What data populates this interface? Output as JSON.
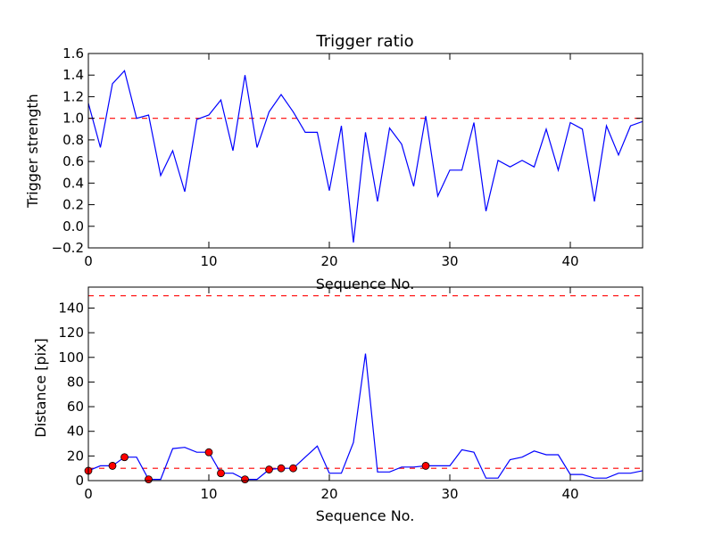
{
  "chart_data": [
    {
      "type": "line",
      "title": "Trigger ratio",
      "xlabel": "Sequence No.",
      "ylabel": "Trigger strength",
      "xlim": [
        0,
        46
      ],
      "ylim": [
        -0.2,
        1.6
      ],
      "xticks": [
        0,
        10,
        20,
        30,
        40
      ],
      "yticks": [
        -0.2,
        0.0,
        0.2,
        0.4,
        0.6,
        0.8,
        1.0,
        1.2,
        1.4,
        1.6
      ],
      "ytick_labels": [
        "−0.2",
        "0.0",
        "0.2",
        "0.4",
        "0.6",
        "0.8",
        "1.0",
        "1.2",
        "1.4",
        "1.6"
      ],
      "xtick_labels": [
        "0",
        "10",
        "20",
        "30",
        "40"
      ],
      "threshold": 1.0,
      "series": [
        {
          "name": "trigger strength",
          "color": "#0000ff",
          "x": [
            0,
            1,
            2,
            3,
            4,
            5,
            6,
            7,
            8,
            9,
            10,
            11,
            12,
            13,
            14,
            15,
            16,
            17,
            18,
            19,
            20,
            21,
            22,
            23,
            24,
            25,
            26,
            27,
            28,
            29,
            30,
            31,
            32,
            33,
            34,
            35,
            36,
            37,
            38,
            39,
            40,
            41,
            42,
            43,
            44,
            45,
            46
          ],
          "values": [
            1.14,
            0.73,
            1.32,
            1.44,
            1.0,
            1.03,
            0.47,
            0.7,
            0.32,
            0.99,
            1.03,
            1.17,
            0.7,
            1.4,
            0.73,
            1.06,
            1.22,
            1.06,
            0.87,
            0.87,
            0.33,
            0.93,
            -0.15,
            0.87,
            0.23,
            0.91,
            0.76,
            0.37,
            1.02,
            0.28,
            0.52,
            0.52,
            0.96,
            0.14,
            0.61,
            0.55,
            0.61,
            0.55,
            0.9,
            0.52,
            0.96,
            0.9,
            0.23,
            0.93,
            0.66,
            0.93,
            0.97
          ]
        }
      ]
    },
    {
      "type": "line",
      "title": "",
      "xlabel": "Sequence No.",
      "ylabel": "Distance [pix]",
      "xlim": [
        0,
        46
      ],
      "ylim": [
        0,
        157
      ],
      "xticks": [
        0,
        10,
        20,
        30,
        40
      ],
      "yticks": [
        0,
        20,
        40,
        60,
        80,
        100,
        120,
        140
      ],
      "xtick_labels": [
        "0",
        "10",
        "20",
        "30",
        "40"
      ],
      "ytick_labels": [
        "0",
        "20",
        "40",
        "60",
        "80",
        "100",
        "120",
        "140"
      ],
      "thresholds": [
        10,
        150
      ],
      "series": [
        {
          "name": "distance",
          "color": "#0000ff",
          "x": [
            0,
            1,
            2,
            3,
            4,
            5,
            6,
            7,
            8,
            9,
            10,
            11,
            12,
            13,
            14,
            15,
            16,
            17,
            18,
            19,
            20,
            21,
            22,
            23,
            24,
            25,
            26,
            27,
            28,
            29,
            30,
            31,
            32,
            33,
            34,
            35,
            36,
            37,
            38,
            39,
            40,
            41,
            42,
            43,
            44,
            45,
            46
          ],
          "values": [
            8,
            12,
            12,
            19,
            19,
            1,
            1,
            26,
            27,
            23,
            23,
            6,
            6,
            1,
            1,
            9,
            10,
            10,
            19,
            28,
            6,
            6,
            31,
            103,
            7,
            7,
            11,
            11,
            12,
            12,
            12,
            25,
            23,
            2,
            2,
            17,
            19,
            24,
            21,
            21,
            5,
            5,
            2,
            2,
            6,
            6,
            8
          ]
        },
        {
          "name": "marked points",
          "color": "#ff0000",
          "x": [
            0,
            2,
            3,
            5,
            10,
            11,
            13,
            15,
            16,
            17,
            28
          ],
          "values": [
            8,
            12,
            19,
            1,
            23,
            6,
            1,
            9,
            10,
            10,
            12
          ]
        }
      ]
    }
  ]
}
